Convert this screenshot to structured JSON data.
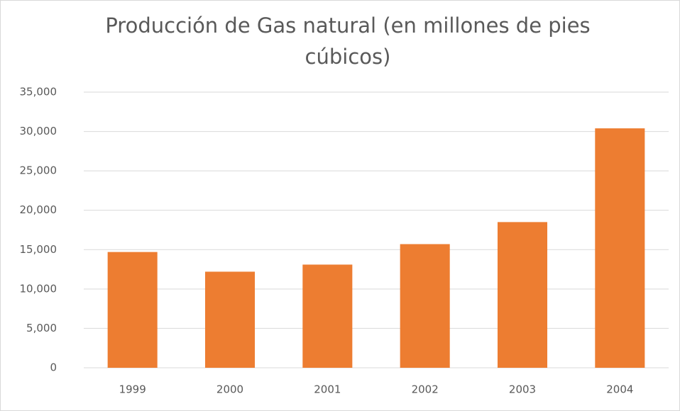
{
  "chart_data": {
    "type": "bar",
    "title": "Producción de Gas natural  (en millones de pies cúbicos)",
    "categories": [
      "1999",
      "2000",
      "2001",
      "2002",
      "2003",
      "2004"
    ],
    "values": [
      14700,
      12200,
      13100,
      15700,
      18500,
      30400
    ],
    "color": "#ed7d31",
    "ylim": [
      0,
      35000
    ],
    "yticks": [
      0,
      {
        "value": 5000,
        "label": "5,000"
      },
      {
        "value": 10000,
        "label": "10,000"
      },
      {
        "value": 15000,
        "label": "15,000"
      },
      {
        "value": 20000,
        "label": "20,000"
      },
      {
        "value": 25000,
        "label": "25,000"
      },
      {
        "value": 30000,
        "label": "30,000"
      },
      {
        "value": 35000,
        "label": "35,000"
      }
    ],
    "grid": true
  }
}
